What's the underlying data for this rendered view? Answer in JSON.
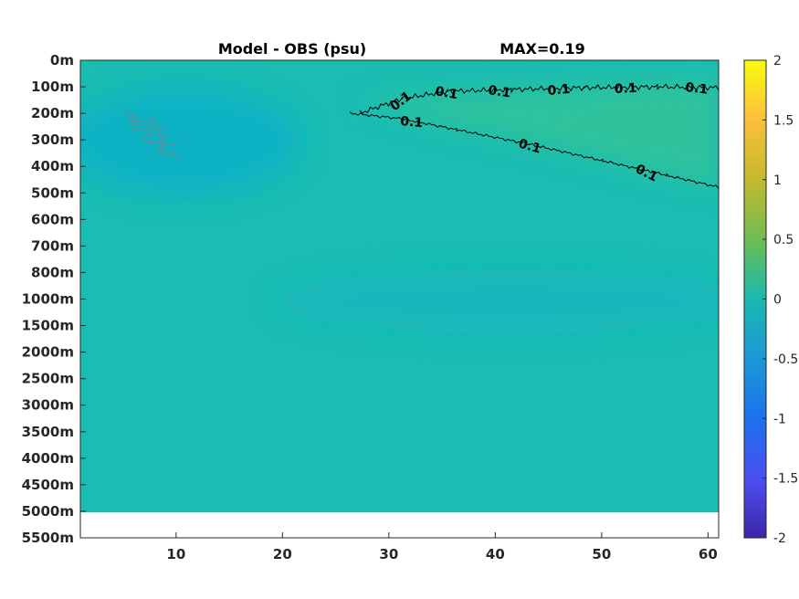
{
  "title_left": "Model - OBS (psu)",
  "title_right": "MAX=0.19",
  "colors": {
    "field_base": "#1abdb2",
    "field_low": "#10b2c4",
    "field_high": "#2ec29c",
    "axes": "#262626",
    "contour": "#000000"
  },
  "chart_data": {
    "type": "heatmap",
    "title": "Model - OBS (psu)",
    "annotation": "MAX=0.19",
    "x_ticks": [
      "10",
      "20",
      "30",
      "40",
      "50",
      "60"
    ],
    "xlim": [
      1,
      61
    ],
    "y_ticks": [
      "0m",
      "100m",
      "200m",
      "300m",
      "400m",
      "500m",
      "600m",
      "700m",
      "800m",
      "1000m",
      "1500m",
      "2000m",
      "2500m",
      "3000m",
      "3500m",
      "4000m",
      "4500m",
      "5000m",
      "5500m"
    ],
    "colorbar": {
      "ticks": [
        "2",
        "1.5",
        "1",
        "0.5",
        "0",
        "-0.5",
        "-1",
        "-1.5",
        "-2"
      ],
      "range": [
        -2,
        2
      ],
      "colormap": "parula"
    },
    "contours": [
      {
        "level": 0.1,
        "label": "0.1",
        "labels_shown": [
          "0.1",
          "0.1",
          "0.1",
          "0.1",
          "0.1",
          "0.1",
          "0.1"
        ]
      },
      {
        "level": 0.1,
        "label": "0.1",
        "labels_shown": [
          "0.1",
          "0.1",
          "0.1"
        ]
      }
    ],
    "max_value": 0.19
  }
}
